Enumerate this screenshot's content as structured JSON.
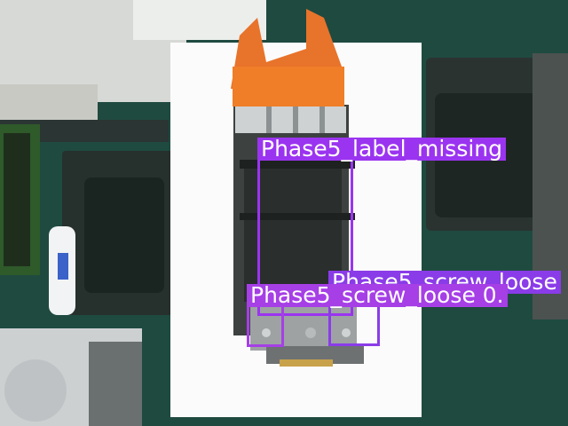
{
  "detections": [
    {
      "label": "Phase5_label_missing",
      "color": "#9b34f0"
    },
    {
      "label": "Phase5_screw_loose",
      "color": "#8a3ce8"
    },
    {
      "label": "Phase5_screw_loose 0.",
      "color": "#a63fe6"
    }
  ]
}
